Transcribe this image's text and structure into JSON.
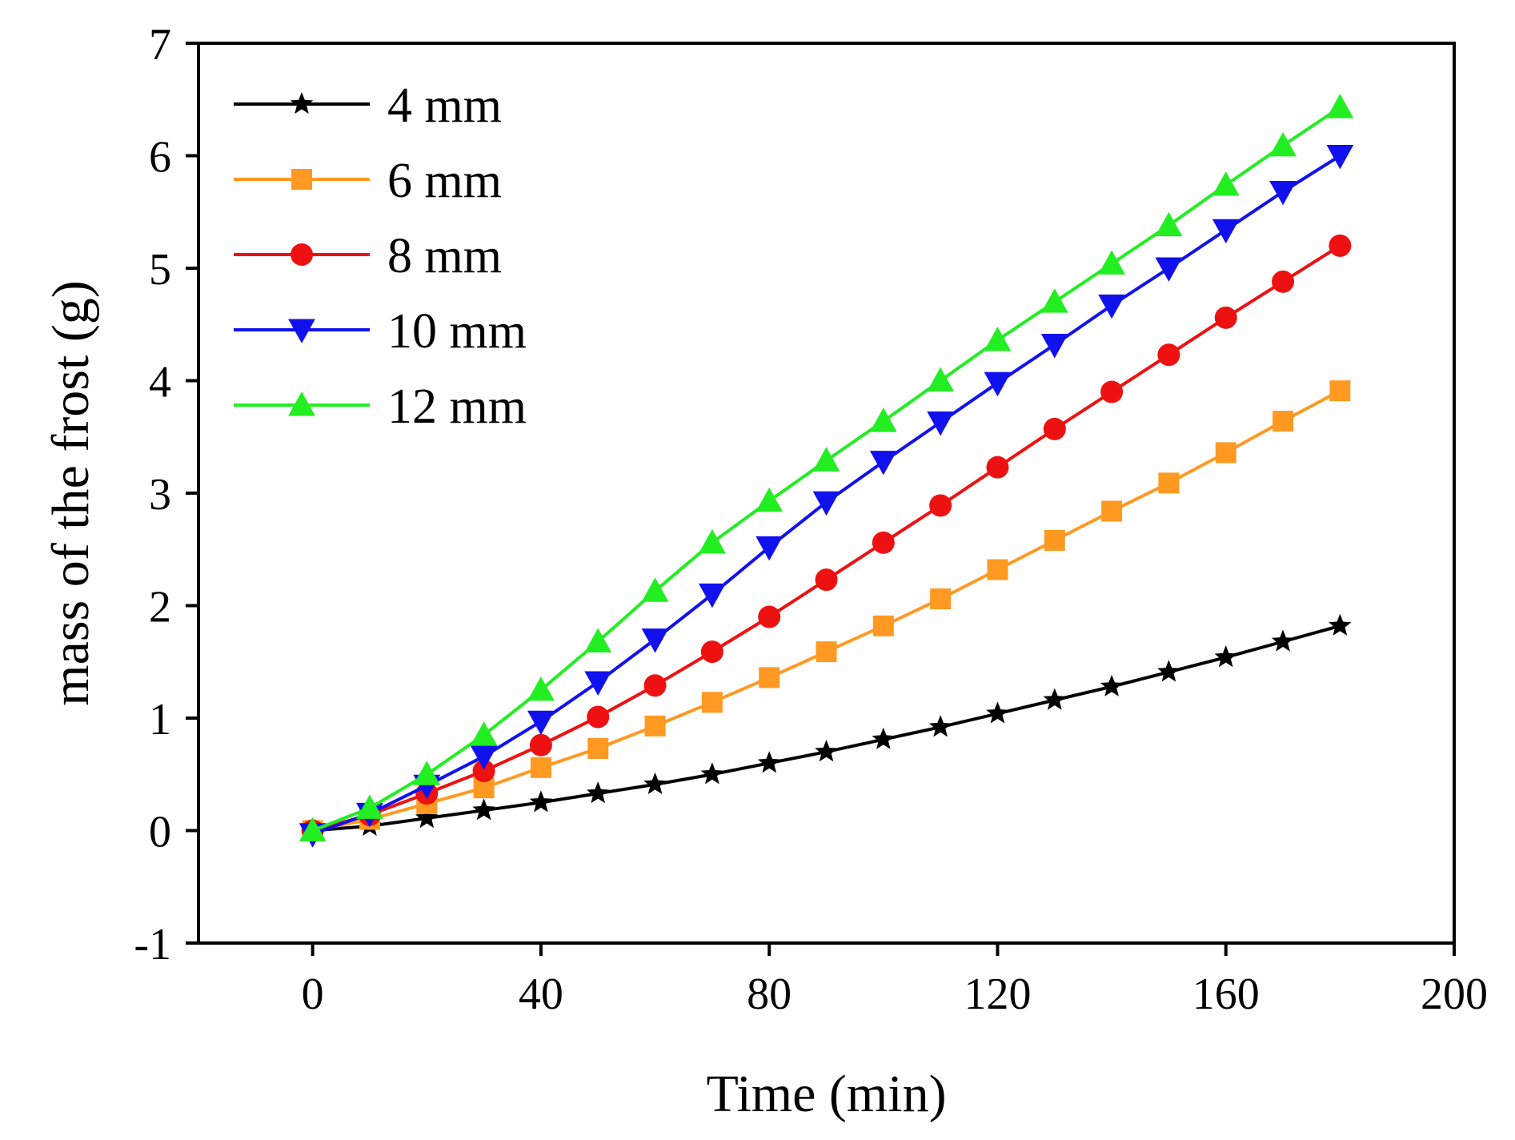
{
  "chart_data": {
    "type": "line",
    "title": "",
    "xlabel": "Time (min)",
    "ylabel": "mass of the frost (g)",
    "xlim": [
      -20,
      200
    ],
    "ylim": [
      -1,
      7
    ],
    "xticks": [
      0,
      40,
      80,
      120,
      160,
      200
    ],
    "xtick_labels": [
      "0",
      "40",
      "80",
      "120",
      "160",
      "200"
    ],
    "yticks": [
      -1,
      0,
      1,
      2,
      3,
      4,
      5,
      6,
      7
    ],
    "ytick_labels": [
      "-1",
      "0",
      "1",
      "2",
      "3",
      "4",
      "5",
      "6",
      "7"
    ],
    "grid": false,
    "legend_position": "top-left",
    "x": [
      0,
      10,
      20,
      30,
      40,
      50,
      60,
      70,
      80,
      90,
      100,
      110,
      120,
      130,
      140,
      150,
      160,
      170,
      180
    ],
    "series": [
      {
        "name": "4 mm",
        "color": "#000000",
        "marker": "star",
        "values": [
          0.0,
          0.04,
          0.11,
          0.18,
          0.25,
          0.33,
          0.41,
          0.5,
          0.6,
          0.7,
          0.81,
          0.92,
          1.04,
          1.16,
          1.28,
          1.41,
          1.54,
          1.68,
          1.82
        ]
      },
      {
        "name": "6 mm",
        "color": "#ff9922",
        "marker": "square",
        "values": [
          0.0,
          0.1,
          0.24,
          0.38,
          0.56,
          0.73,
          0.93,
          1.14,
          1.36,
          1.59,
          1.82,
          2.06,
          2.32,
          2.58,
          2.84,
          3.09,
          3.36,
          3.64,
          3.91
        ]
      },
      {
        "name": "8 mm",
        "color": "#ee1111",
        "marker": "circle",
        "values": [
          0.0,
          0.14,
          0.33,
          0.53,
          0.76,
          1.01,
          1.29,
          1.59,
          1.9,
          2.23,
          2.56,
          2.89,
          3.23,
          3.57,
          3.9,
          4.23,
          4.56,
          4.88,
          5.2
        ]
      },
      {
        "name": "10 mm",
        "color": "#1111ee",
        "marker": "triangle-down",
        "values": [
          -0.03,
          0.15,
          0.4,
          0.66,
          0.97,
          1.32,
          1.7,
          2.1,
          2.52,
          2.92,
          3.28,
          3.63,
          3.98,
          4.32,
          4.67,
          5.0,
          5.34,
          5.68,
          6.0
        ]
      },
      {
        "name": "12 mm",
        "color": "#22ee22",
        "marker": "triangle-up",
        "values": [
          0.0,
          0.2,
          0.5,
          0.85,
          1.25,
          1.68,
          2.13,
          2.56,
          2.93,
          3.29,
          3.64,
          4.0,
          4.36,
          4.7,
          5.04,
          5.38,
          5.74,
          6.09,
          6.43
        ]
      }
    ]
  }
}
